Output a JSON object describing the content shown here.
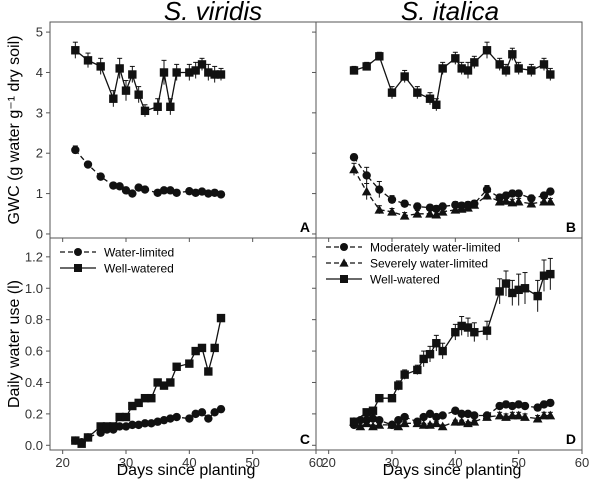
{
  "figure": {
    "titles": [
      "S. viridis",
      "S. italica"
    ],
    "xlabel": "Days since planting",
    "ylabel_top": "GWC (g water g⁻¹ dry soil)",
    "ylabel_bottom": "Daily water use (l)"
  },
  "chart_data": [
    {
      "type": "line",
      "panel": "A",
      "title": "S. viridis",
      "xlabel": "",
      "ylabel": "GWC (g water g⁻¹ dry soil)",
      "xlim": [
        18,
        60
      ],
      "ylim": [
        -0.1,
        5.25
      ],
      "xticks": [
        20,
        30,
        40,
        50,
        60
      ],
      "yticks": [
        0,
        1,
        2,
        3,
        4,
        5
      ],
      "grid": false,
      "series": [
        {
          "name": "Water-limited",
          "marker": "circle",
          "dash": true,
          "x": [
            22,
            24,
            26,
            28,
            29,
            30,
            31,
            32,
            33,
            35,
            36,
            37,
            38,
            40,
            41,
            42,
            43,
            44,
            45
          ],
          "y": [
            2.08,
            1.72,
            1.42,
            1.2,
            1.18,
            1.08,
            1.0,
            1.15,
            1.1,
            1.02,
            1.08,
            1.08,
            1.02,
            1.06,
            1.02,
            1.05,
            1.0,
            1.02,
            0.98
          ],
          "err": [
            0.1,
            0.06,
            0.05,
            0.04,
            0.04,
            0.04,
            0.04,
            0.04,
            0.04,
            0.04,
            0.04,
            0.04,
            0.04,
            0.04,
            0.04,
            0.04,
            0.04,
            0.04,
            0.04
          ]
        },
        {
          "name": "Well-watered",
          "marker": "square",
          "dash": false,
          "x": [
            22,
            24,
            26,
            28,
            29,
            30,
            31,
            32,
            33,
            35,
            36,
            37,
            38,
            40,
            41,
            42,
            43,
            44,
            45
          ],
          "y": [
            4.55,
            4.3,
            4.15,
            3.35,
            4.1,
            3.55,
            3.95,
            3.45,
            3.05,
            3.15,
            4.0,
            3.15,
            4.0,
            4.0,
            4.05,
            4.2,
            4.0,
            3.95,
            3.95
          ],
          "err": [
            0.2,
            0.18,
            0.2,
            0.2,
            0.25,
            0.25,
            0.2,
            0.2,
            0.15,
            0.2,
            0.3,
            0.2,
            0.2,
            0.2,
            0.2,
            0.15,
            0.2,
            0.2,
            0.15
          ]
        }
      ]
    },
    {
      "type": "line",
      "panel": "B",
      "title": "S. italica",
      "xlim": [
        18,
        60
      ],
      "ylim": [
        -0.1,
        5.25
      ],
      "xticks": [
        20,
        30,
        40,
        50,
        60
      ],
      "yticks": [
        0,
        1,
        2,
        3,
        4,
        5
      ],
      "grid": false,
      "series": [
        {
          "name": "Moderately water-limited",
          "marker": "circle",
          "dash": true,
          "x": [
            24,
            26,
            28,
            30,
            32,
            34,
            36,
            37,
            38,
            40,
            41,
            42,
            43,
            45,
            47,
            48,
            49,
            50,
            52,
            54,
            55
          ],
          "y": [
            1.9,
            1.45,
            1.1,
            0.85,
            0.75,
            0.68,
            0.65,
            0.62,
            0.68,
            0.72,
            0.7,
            0.72,
            0.75,
            1.1,
            0.9,
            0.95,
            1.0,
            1.0,
            0.88,
            0.95,
            1.05
          ],
          "err": [
            0.08,
            0.2,
            0.2,
            0.1,
            0.08,
            0.08,
            0.08,
            0.08,
            0.08,
            0.08,
            0.08,
            0.08,
            0.08,
            0.1,
            0.08,
            0.08,
            0.08,
            0.08,
            0.08,
            0.08,
            0.08
          ]
        },
        {
          "name": "Severely water-limited",
          "marker": "triangle",
          "dash": true,
          "x": [
            24,
            26,
            28,
            30,
            32,
            34,
            36,
            37,
            38,
            40,
            41,
            42,
            43,
            45,
            47,
            48,
            49,
            50,
            52,
            54,
            55
          ],
          "y": [
            1.6,
            1.05,
            0.6,
            0.55,
            0.45,
            0.5,
            0.5,
            0.48,
            0.55,
            0.6,
            0.62,
            0.65,
            0.72,
            0.95,
            0.8,
            0.82,
            0.78,
            0.8,
            0.75,
            0.8,
            0.8
          ],
          "err": [
            0.15,
            0.2,
            0.1,
            0.08,
            0.08,
            0.08,
            0.08,
            0.08,
            0.08,
            0.08,
            0.08,
            0.08,
            0.08,
            0.1,
            0.08,
            0.08,
            0.08,
            0.08,
            0.08,
            0.08,
            0.08
          ]
        },
        {
          "name": "Well-watered",
          "marker": "square",
          "dash": false,
          "x": [
            24,
            26,
            28,
            30,
            32,
            34,
            36,
            37,
            38,
            40,
            41,
            42,
            43,
            45,
            47,
            48,
            49,
            50,
            52,
            54,
            55
          ],
          "y": [
            4.05,
            4.15,
            4.4,
            3.5,
            3.9,
            3.5,
            3.35,
            3.2,
            4.1,
            4.35,
            4.1,
            4.05,
            4.25,
            4.55,
            4.2,
            4.05,
            4.45,
            4.1,
            4.05,
            4.2,
            3.95
          ],
          "err": [
            0.1,
            0.1,
            0.1,
            0.15,
            0.15,
            0.15,
            0.15,
            0.15,
            0.15,
            0.15,
            0.15,
            0.2,
            0.15,
            0.2,
            0.15,
            0.15,
            0.15,
            0.15,
            0.15,
            0.15,
            0.15
          ]
        }
      ]
    },
    {
      "type": "line",
      "panel": "C",
      "xlabel": "Days since planting",
      "ylabel": "Daily water use (l)",
      "xlim": [
        18,
        60
      ],
      "ylim": [
        -0.03,
        1.32
      ],
      "xticks": [
        20,
        30,
        40,
        50,
        60
      ],
      "yticks": [
        0,
        0.2,
        0.4,
        0.6,
        0.8,
        1.0,
        1.2
      ],
      "ytick_labels": [
        "0.0",
        "0.2",
        "0.4",
        "0.6",
        "0.8",
        "1.0",
        "1.2"
      ],
      "grid": false,
      "legend": "top-left",
      "series": [
        {
          "name": "Water-limited",
          "marker": "circle",
          "dash": true,
          "x": [
            22,
            23,
            24,
            26,
            27,
            28,
            29,
            30,
            31,
            32,
            33,
            34,
            35,
            36,
            37,
            38,
            40,
            41,
            42,
            43,
            44,
            45
          ],
          "y": [
            0.03,
            0.02,
            0.05,
            0.08,
            0.1,
            0.1,
            0.12,
            0.12,
            0.13,
            0.13,
            0.14,
            0.14,
            0.15,
            0.16,
            0.17,
            0.18,
            0.17,
            0.2,
            0.21,
            0.17,
            0.21,
            0.23
          ],
          "err": [
            0.01,
            0.01,
            0.01,
            0.01,
            0.01,
            0.01,
            0.01,
            0.01,
            0.01,
            0.01,
            0.01,
            0.01,
            0.01,
            0.01,
            0.01,
            0.01,
            0.01,
            0.01,
            0.01,
            0.01,
            0.01,
            0.02
          ]
        },
        {
          "name": "Well-watered",
          "marker": "square",
          "dash": false,
          "x": [
            22,
            23,
            24,
            26,
            27,
            28,
            29,
            30,
            31,
            32,
            33,
            34,
            35,
            36,
            37,
            38,
            40,
            41,
            42,
            43,
            44,
            45
          ],
          "y": [
            0.03,
            0.01,
            0.05,
            0.12,
            0.12,
            0.12,
            0.18,
            0.18,
            0.25,
            0.27,
            0.3,
            0.3,
            0.4,
            0.38,
            0.4,
            0.5,
            0.52,
            0.6,
            0.62,
            0.47,
            0.62,
            0.81
          ],
          "err": [
            0.01,
            0.01,
            0.01,
            0.01,
            0.01,
            0.01,
            0.01,
            0.01,
            0.02,
            0.02,
            0.02,
            0.02,
            0.02,
            0.02,
            0.02,
            0.02,
            0.02,
            0.02,
            0.02,
            0.02,
            0.02,
            0.02
          ]
        }
      ]
    },
    {
      "type": "line",
      "panel": "D",
      "xlabel": "Days since planting",
      "xlim": [
        18,
        60
      ],
      "ylim": [
        -0.03,
        1.32
      ],
      "xticks": [
        20,
        30,
        40,
        50,
        60
      ],
      "yticks": [
        0,
        0.2,
        0.4,
        0.6,
        0.8,
        1.0,
        1.2
      ],
      "grid": false,
      "legend": "top-left",
      "series": [
        {
          "name": "Moderately water-limited",
          "marker": "circle",
          "dash": true,
          "x": [
            24,
            25,
            26,
            27,
            28,
            30,
            31,
            32,
            34,
            35,
            36,
            37,
            38,
            40,
            41,
            42,
            43,
            45,
            47,
            48,
            49,
            50,
            51,
            53,
            54,
            55
          ],
          "y": [
            0.13,
            0.16,
            0.16,
            0.17,
            0.16,
            0.13,
            0.16,
            0.18,
            0.15,
            0.18,
            0.2,
            0.18,
            0.19,
            0.22,
            0.2,
            0.2,
            0.19,
            0.19,
            0.25,
            0.26,
            0.25,
            0.26,
            0.25,
            0.24,
            0.26,
            0.27
          ],
          "err": [
            0.01,
            0.01,
            0.01,
            0.01,
            0.01,
            0.01,
            0.01,
            0.01,
            0.01,
            0.01,
            0.01,
            0.01,
            0.01,
            0.01,
            0.01,
            0.01,
            0.01,
            0.01,
            0.02,
            0.02,
            0.02,
            0.02,
            0.02,
            0.02,
            0.02,
            0.02
          ]
        },
        {
          "name": "Severely water-limited",
          "marker": "triangle",
          "dash": true,
          "x": [
            24,
            25,
            26,
            27,
            28,
            30,
            31,
            32,
            34,
            35,
            36,
            37,
            38,
            40,
            41,
            42,
            43,
            45,
            47,
            48,
            49,
            50,
            51,
            53,
            54,
            55
          ],
          "y": [
            0.15,
            0.12,
            0.14,
            0.12,
            0.13,
            0.13,
            0.12,
            0.14,
            0.14,
            0.13,
            0.13,
            0.14,
            0.12,
            0.15,
            0.15,
            0.14,
            0.15,
            0.18,
            0.19,
            0.18,
            0.19,
            0.19,
            0.18,
            0.17,
            0.19,
            0.19
          ],
          "err": [
            0.01,
            0.01,
            0.01,
            0.01,
            0.01,
            0.01,
            0.01,
            0.01,
            0.01,
            0.01,
            0.01,
            0.01,
            0.01,
            0.01,
            0.01,
            0.01,
            0.01,
            0.01,
            0.02,
            0.02,
            0.02,
            0.02,
            0.02,
            0.02,
            0.02,
            0.02
          ]
        },
        {
          "name": "Well-watered",
          "marker": "square",
          "dash": false,
          "x": [
            24,
            26,
            27,
            28,
            30,
            31,
            32,
            34,
            35,
            36,
            37,
            38,
            40,
            41,
            42,
            43,
            45,
            47,
            48,
            49,
            50,
            51,
            53,
            54,
            55
          ],
          "y": [
            0.15,
            0.21,
            0.22,
            0.3,
            0.3,
            0.38,
            0.45,
            0.48,
            0.55,
            0.58,
            0.65,
            0.6,
            0.72,
            0.76,
            0.75,
            0.72,
            0.73,
            0.98,
            1.03,
            0.97,
            0.99,
            1.0,
            0.95,
            1.08,
            1.09
          ],
          "err": [
            0.01,
            0.02,
            0.02,
            0.02,
            0.02,
            0.03,
            0.03,
            0.03,
            0.05,
            0.05,
            0.05,
            0.05,
            0.05,
            0.06,
            0.06,
            0.06,
            0.06,
            0.08,
            0.08,
            0.08,
            0.1,
            0.1,
            0.1,
            0.1,
            0.1
          ]
        }
      ]
    }
  ]
}
